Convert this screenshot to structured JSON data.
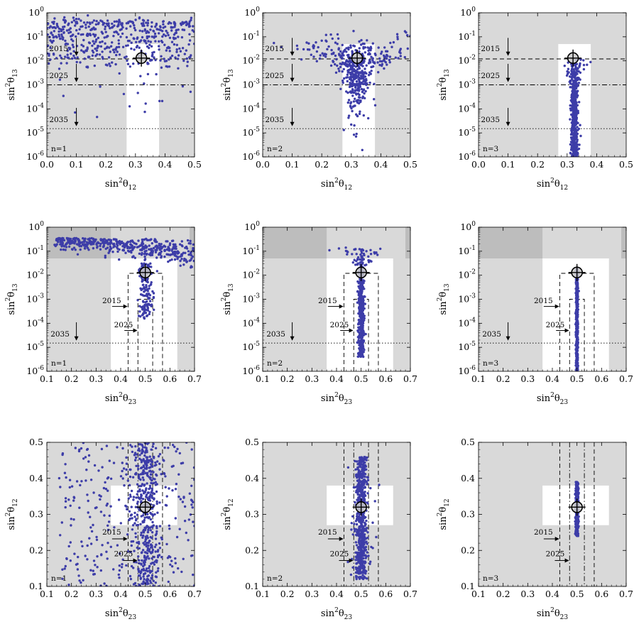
{
  "figure": {
    "colors": {
      "region_white": "#ffffff",
      "region_light": "#d9d9d9",
      "region_dark": "#bdbdbd",
      "points": "#3d3da8",
      "line": "#000000"
    }
  },
  "chart_data": [
    {
      "id": "p1",
      "type": "scatter",
      "panel_label": "n=1",
      "x_var": "s12",
      "y_var": "s13",
      "y_scale": "log",
      "xlim": [
        0,
        0.5
      ],
      "ylim_exp": [
        -6,
        0
      ],
      "xticks": [
        "0.0",
        "0.1",
        "0.2",
        "0.3",
        "0.4",
        "0.5"
      ],
      "yticks": [
        "10^-6",
        "10^-5",
        "10^-4",
        "10^-3",
        "10^-2",
        "10^-1",
        "10^0"
      ],
      "xlabel": {
        "base": "sin",
        "sup": "2",
        "theta": "θ",
        "sub": "12"
      },
      "ylabel": {
        "base": "sin",
        "sup": "2",
        "theta": "θ",
        "sub": "13"
      },
      "best_fit": {
        "x": 0.32,
        "y": 0.013
      },
      "hlines": [
        {
          "label": "2015",
          "y": 0.012,
          "style": "dashed"
        },
        {
          "label": "2025",
          "y": 0.001,
          "style": "dashdot"
        },
        {
          "label": "2035",
          "y": 1.5e-05,
          "style": "dotted"
        }
      ],
      "vlines": [],
      "arrow_labels": [
        {
          "label": "2015",
          "dir": "down",
          "x": 0.1,
          "y": 0.09,
          "y2": 0.016,
          "tx": 0.008,
          "ty": 0.025
        },
        {
          "label": "2025",
          "dir": "down",
          "x": 0.1,
          "y": 0.0075,
          "y2": 0.0013,
          "tx": 0.008,
          "ty": 0.0019
        },
        {
          "label": "2035",
          "dir": "down",
          "x": 0.1,
          "y": 0.00011,
          "y2": 1.9e-05,
          "tx": 0.008,
          "ty": 2.8e-05
        }
      ],
      "point_dist": {
        "count": 520,
        "mode": "n1_s13"
      }
    },
    {
      "id": "p2",
      "type": "scatter",
      "panel_label": "n=2",
      "x_var": "s12",
      "y_var": "s13",
      "y_scale": "log",
      "xlim": [
        0,
        0.5
      ],
      "ylim_exp": [
        -6,
        0
      ],
      "xticks": [
        "0.0",
        "0.1",
        "0.2",
        "0.3",
        "0.4",
        "0.5"
      ],
      "yticks": [
        "10^-6",
        "10^-5",
        "10^-4",
        "10^-3",
        "10^-2",
        "10^-1",
        "10^0"
      ],
      "xlabel": {
        "base": "sin",
        "sup": "2",
        "theta": "θ",
        "sub": "12"
      },
      "ylabel": {
        "base": "sin",
        "sup": "2",
        "theta": "θ",
        "sub": "13"
      },
      "best_fit": {
        "x": 0.32,
        "y": 0.013
      },
      "hlines": [
        {
          "label": "2015",
          "y": 0.012,
          "style": "dashed"
        },
        {
          "label": "2025",
          "y": 0.001,
          "style": "dashdot"
        },
        {
          "label": "2035",
          "y": 1.5e-05,
          "style": "dotted"
        }
      ],
      "vlines": [],
      "arrow_labels": [
        {
          "label": "2015",
          "dir": "down",
          "x": 0.1,
          "y": 0.09,
          "y2": 0.016,
          "tx": 0.008,
          "ty": 0.025
        },
        {
          "label": "2025",
          "dir": "down",
          "x": 0.1,
          "y": 0.0075,
          "y2": 0.0013,
          "tx": 0.008,
          "ty": 0.0019
        },
        {
          "label": "2035",
          "dir": "down",
          "x": 0.1,
          "y": 0.00011,
          "y2": 1.9e-05,
          "tx": 0.008,
          "ty": 2.8e-05
        }
      ],
      "point_dist": {
        "count": 480,
        "mode": "n2_s13"
      }
    },
    {
      "id": "p3",
      "type": "scatter",
      "panel_label": "n=3",
      "x_var": "s12",
      "y_var": "s13",
      "y_scale": "log",
      "xlim": [
        0,
        0.5
      ],
      "ylim_exp": [
        -6,
        0
      ],
      "xticks": [
        "0.0",
        "0.1",
        "0.2",
        "0.3",
        "0.4",
        "0.5"
      ],
      "yticks": [
        "10^-6",
        "10^-5",
        "10^-4",
        "10^-3",
        "10^-2",
        "10^-1",
        "10^0"
      ],
      "xlabel": {
        "base": "sin",
        "sup": "2",
        "theta": "θ",
        "sub": "12"
      },
      "ylabel": {
        "base": "sin",
        "sup": "2",
        "theta": "θ",
        "sub": "13"
      },
      "best_fit": {
        "x": 0.32,
        "y": 0.013
      },
      "hlines": [
        {
          "label": "2015",
          "y": 0.012,
          "style": "dashed"
        },
        {
          "label": "2025",
          "y": 0.001,
          "style": "dashdot"
        },
        {
          "label": "2035",
          "y": 1.5e-05,
          "style": "dotted"
        }
      ],
      "vlines": [],
      "arrow_labels": [
        {
          "label": "2015",
          "dir": "down",
          "x": 0.1,
          "y": 0.09,
          "y2": 0.016,
          "tx": 0.008,
          "ty": 0.025
        },
        {
          "label": "2025",
          "dir": "down",
          "x": 0.1,
          "y": 0.0075,
          "y2": 0.0013,
          "tx": 0.008,
          "ty": 0.0019
        },
        {
          "label": "2035",
          "dir": "down",
          "x": 0.1,
          "y": 0.00011,
          "y2": 1.9e-05,
          "tx": 0.008,
          "ty": 2.8e-05
        }
      ],
      "point_dist": {
        "count": 560,
        "mode": "n3_s13"
      }
    },
    {
      "id": "p4",
      "type": "scatter",
      "panel_label": "n=1",
      "x_var": "s23",
      "y_var": "s13",
      "y_scale": "log",
      "xlim": [
        0.1,
        0.7
      ],
      "ylim_exp": [
        -6,
        0
      ],
      "xticks": [
        "0.1",
        "0.2",
        "0.3",
        "0.4",
        "0.5",
        "0.6",
        "0.7"
      ],
      "yticks": [
        "10^-6",
        "10^-5",
        "10^-4",
        "10^-3",
        "10^-2",
        "10^-1",
        "10^0"
      ],
      "xlabel": {
        "base": "sin",
        "sup": "2",
        "theta": "θ",
        "sub": "23"
      },
      "ylabel": {
        "base": "sin",
        "sup": "2",
        "theta": "θ",
        "sub": "13"
      },
      "best_fit": {
        "x": 0.5,
        "y": 0.013
      },
      "hlines": [
        {
          "label": "2035",
          "y": 1.5e-05,
          "style": "dotted"
        }
      ],
      "boxes": [
        {
          "label": "2015",
          "x0": 0.43,
          "x1": 0.57,
          "ytop": 0.012,
          "style": "dashed"
        },
        {
          "label": "2025",
          "x0": 0.47,
          "x1": 0.53,
          "ytop": 0.001,
          "style": "dashed"
        }
      ],
      "arrow_labels": [
        {
          "label": "2015",
          "dir": "right",
          "x": 0.365,
          "x2": 0.428,
          "y": 0.0005,
          "tx": 0.325,
          "ty": 0.00068
        },
        {
          "label": "2025",
          "dir": "right",
          "x": 0.415,
          "x2": 0.468,
          "y": 5e-05,
          "tx": 0.373,
          "ty": 6.8e-05
        },
        {
          "label": "2035",
          "dir": "down",
          "x": 0.22,
          "y": 0.00011,
          "y2": 1.9e-05,
          "tx": 0.115,
          "ty": 2.8e-05
        }
      ],
      "point_dist": {
        "count": 620,
        "mode": "n1_s23_s13"
      }
    },
    {
      "id": "p5",
      "type": "scatter",
      "panel_label": "n=2",
      "x_var": "s23",
      "y_var": "s13",
      "y_scale": "log",
      "xlim": [
        0.1,
        0.7
      ],
      "ylim_exp": [
        -6,
        0
      ],
      "xticks": [
        "0.1",
        "0.2",
        "0.3",
        "0.4",
        "0.5",
        "0.6",
        "0.7"
      ],
      "yticks": [
        "10^-6",
        "10^-5",
        "10^-4",
        "10^-3",
        "10^-2",
        "10^-1",
        "10^0"
      ],
      "xlabel": {
        "base": "sin",
        "sup": "2",
        "theta": "θ",
        "sub": "23"
      },
      "ylabel": {
        "base": "sin",
        "sup": "2",
        "theta": "θ",
        "sub": "13"
      },
      "best_fit": {
        "x": 0.5,
        "y": 0.013
      },
      "hlines": [
        {
          "label": "2035",
          "y": 1.5e-05,
          "style": "dotted"
        }
      ],
      "boxes": [
        {
          "label": "2015",
          "x0": 0.43,
          "x1": 0.57,
          "ytop": 0.012,
          "style": "dashed"
        },
        {
          "label": "2025",
          "x0": 0.47,
          "x1": 0.53,
          "ytop": 0.001,
          "style": "dashed"
        }
      ],
      "arrow_labels": [
        {
          "label": "2015",
          "dir": "right",
          "x": 0.365,
          "x2": 0.428,
          "y": 0.0005,
          "tx": 0.325,
          "ty": 0.00068
        },
        {
          "label": "2025",
          "dir": "right",
          "x": 0.415,
          "x2": 0.468,
          "y": 5e-05,
          "tx": 0.373,
          "ty": 6.8e-05
        },
        {
          "label": "2035",
          "dir": "down",
          "x": 0.22,
          "y": 0.00011,
          "y2": 1.9e-05,
          "tx": 0.115,
          "ty": 2.8e-05
        }
      ],
      "point_dist": {
        "count": 520,
        "mode": "n2_s23_s13"
      }
    },
    {
      "id": "p6",
      "type": "scatter",
      "panel_label": "n=3",
      "x_var": "s23",
      "y_var": "s13",
      "y_scale": "log",
      "xlim": [
        0.1,
        0.7
      ],
      "ylim_exp": [
        -6,
        0
      ],
      "xticks": [
        "0.1",
        "0.2",
        "0.3",
        "0.4",
        "0.5",
        "0.6",
        "0.7"
      ],
      "yticks": [
        "10^-6",
        "10^-5",
        "10^-4",
        "10^-3",
        "10^-2",
        "10^-1",
        "10^0"
      ],
      "xlabel": {
        "base": "sin",
        "sup": "2",
        "theta": "θ",
        "sub": "23"
      },
      "ylabel": {
        "base": "sin",
        "sup": "2",
        "theta": "θ",
        "sub": "13"
      },
      "best_fit": {
        "x": 0.5,
        "y": 0.013
      },
      "hlines": [
        {
          "label": "2035",
          "y": 1.5e-05,
          "style": "dotted"
        }
      ],
      "boxes": [
        {
          "label": "2015",
          "x0": 0.43,
          "x1": 0.57,
          "ytop": 0.012,
          "style": "dashed"
        },
        {
          "label": "2025",
          "x0": 0.47,
          "x1": 0.53,
          "ytop": 0.001,
          "style": "dashed"
        }
      ],
      "arrow_labels": [
        {
          "label": "2015",
          "dir": "right",
          "x": 0.365,
          "x2": 0.428,
          "y": 0.0005,
          "tx": 0.325,
          "ty": 0.00068
        },
        {
          "label": "2025",
          "dir": "right",
          "x": 0.415,
          "x2": 0.468,
          "y": 5e-05,
          "tx": 0.373,
          "ty": 6.8e-05
        },
        {
          "label": "2035",
          "dir": "down",
          "x": 0.22,
          "y": 0.00011,
          "y2": 1.9e-05,
          "tx": 0.115,
          "ty": 2.8e-05
        }
      ],
      "point_dist": {
        "count": 600,
        "mode": "n3_s23_s13"
      }
    },
    {
      "id": "p7",
      "type": "scatter",
      "panel_label": "n=1",
      "x_var": "s23",
      "y_var": "s12",
      "y_scale": "linear",
      "xlim": [
        0.1,
        0.7
      ],
      "ylim": [
        0.1,
        0.5
      ],
      "xticks": [
        "0.1",
        "0.2",
        "0.3",
        "0.4",
        "0.5",
        "0.6",
        "0.7"
      ],
      "yticks": [
        "0.1",
        "0.2",
        "0.3",
        "0.4",
        "0.5"
      ],
      "xlabel": {
        "base": "sin",
        "sup": "2",
        "theta": "θ",
        "sub": "23"
      },
      "ylabel": {
        "base": "sin",
        "sup": "2",
        "theta": "θ",
        "sub": "12"
      },
      "best_fit": {
        "x": 0.5,
        "y": 0.32
      },
      "vlines": [
        {
          "label": "2015",
          "x": 0.43,
          "style": "dashed"
        },
        {
          "label": "2015",
          "x": 0.57,
          "style": "dashed"
        },
        {
          "label": "2025",
          "x": 0.47,
          "style": "dashdot"
        },
        {
          "label": "2025",
          "x": 0.53,
          "style": "dashdot"
        }
      ],
      "arrow_labels": [
        {
          "label": "2015",
          "dir": "right",
          "x": 0.365,
          "x2": 0.428,
          "y": 0.232,
          "tx": 0.325,
          "ty": 0.244
        },
        {
          "label": "2025",
          "dir": "right",
          "x": 0.41,
          "x2": 0.468,
          "y": 0.172,
          "tx": 0.373,
          "ty": 0.184
        }
      ],
      "point_dist": {
        "count": 700,
        "mode": "n1_s23_s12"
      }
    },
    {
      "id": "p8",
      "type": "scatter",
      "panel_label": "n=2",
      "x_var": "s23",
      "y_var": "s12",
      "y_scale": "linear",
      "xlim": [
        0.1,
        0.7
      ],
      "ylim": [
        0.1,
        0.5
      ],
      "xticks": [
        "0.1",
        "0.2",
        "0.3",
        "0.4",
        "0.5",
        "0.6",
        "0.7"
      ],
      "yticks": [
        "0.1",
        "0.2",
        "0.3",
        "0.4",
        "0.5"
      ],
      "xlabel": {
        "base": "sin",
        "sup": "2",
        "theta": "θ",
        "sub": "23"
      },
      "ylabel": {
        "base": "sin",
        "sup": "2",
        "theta": "θ",
        "sub": "12"
      },
      "best_fit": {
        "x": 0.5,
        "y": 0.32
      },
      "vlines": [
        {
          "label": "2015",
          "x": 0.43,
          "style": "dashed"
        },
        {
          "label": "2015",
          "x": 0.57,
          "style": "dashed"
        },
        {
          "label": "2025",
          "x": 0.47,
          "style": "dashdot"
        },
        {
          "label": "2025",
          "x": 0.53,
          "style": "dashdot"
        }
      ],
      "arrow_labels": [
        {
          "label": "2015",
          "dir": "right",
          "x": 0.365,
          "x2": 0.428,
          "y": 0.232,
          "tx": 0.325,
          "ty": 0.244
        },
        {
          "label": "2025",
          "dir": "right",
          "x": 0.41,
          "x2": 0.468,
          "y": 0.172,
          "tx": 0.373,
          "ty": 0.184
        }
      ],
      "point_dist": {
        "count": 620,
        "mode": "n2_s23_s12"
      }
    },
    {
      "id": "p9",
      "type": "scatter",
      "panel_label": "n=3",
      "x_var": "s23",
      "y_var": "s12",
      "y_scale": "linear",
      "xlim": [
        0.1,
        0.7
      ],
      "ylim": [
        0.1,
        0.5
      ],
      "xticks": [
        "0.1",
        "0.2",
        "0.3",
        "0.4",
        "0.5",
        "0.6",
        "0.7"
      ],
      "yticks": [
        "0.1",
        "0.2",
        "0.3",
        "0.4",
        "0.5"
      ],
      "xlabel": {
        "base": "sin",
        "sup": "2",
        "theta": "θ",
        "sub": "23"
      },
      "ylabel": {
        "base": "sin",
        "sup": "2",
        "theta": "θ",
        "sub": "12"
      },
      "best_fit": {
        "x": 0.5,
        "y": 0.32
      },
      "vlines": [
        {
          "label": "2015",
          "x": 0.43,
          "style": "dashed"
        },
        {
          "label": "2015",
          "x": 0.57,
          "style": "dashed"
        },
        {
          "label": "2025",
          "x": 0.47,
          "style": "dashdot"
        },
        {
          "label": "2025",
          "x": 0.53,
          "style": "dashdot"
        }
      ],
      "arrow_labels": [
        {
          "label": "2015",
          "dir": "right",
          "x": 0.365,
          "x2": 0.428,
          "y": 0.232,
          "tx": 0.325,
          "ty": 0.244
        },
        {
          "label": "2025",
          "dir": "right",
          "x": 0.41,
          "x2": 0.468,
          "y": 0.172,
          "tx": 0.373,
          "ty": 0.184
        }
      ],
      "point_dist": {
        "count": 500,
        "mode": "n3_s23_s12"
      }
    }
  ]
}
